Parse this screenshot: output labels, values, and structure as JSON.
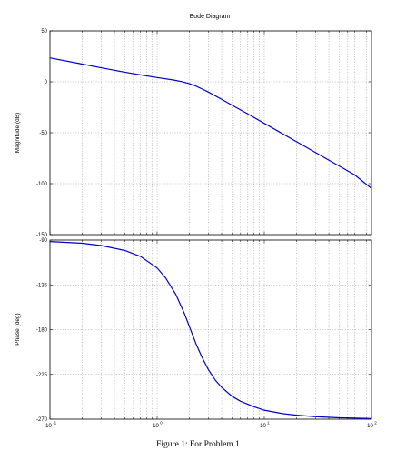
{
  "figure": {
    "title": "Bode Diagram",
    "caption": "Figure 1: For Problem 1"
  },
  "colors": {
    "curve": "#0000cc",
    "grid": "#8a8a8a",
    "axis": "#000000"
  },
  "chart_data": [
    {
      "type": "line",
      "title": "Bode Diagram",
      "xlabel": "",
      "ylabel": "Magnitude (dB)",
      "xscale": "log",
      "xlim": [
        0.1,
        100
      ],
      "ylim": [
        -150,
        50
      ],
      "yticks": [
        50,
        0,
        -50,
        -100,
        -150
      ],
      "grid": true,
      "series": [
        {
          "x": [
            0.1,
            0.2,
            0.3,
            0.5,
            0.7,
            1.0,
            1.4,
            1.7,
            2.0,
            2.3,
            2.6,
            3.0,
            4.0,
            5.0,
            7.0,
            10.0,
            20.0,
            30.0,
            50.0,
            70.0,
            100.0
          ],
          "y": [
            23.5,
            17.4,
            13.8,
            9.4,
            6.8,
            4.2,
            1.9,
            0.2,
            -1.8,
            -4.2,
            -6.8,
            -10.0,
            -17.2,
            -23.0,
            -31.5,
            -40.8,
            -58.8,
            -69.4,
            -82.7,
            -91.5,
            -104.7
          ]
        }
      ]
    },
    {
      "type": "line",
      "xlabel": "",
      "ylabel": "Phase (deg)",
      "xscale": "log",
      "xlim": [
        0.1,
        100
      ],
      "ylim": [
        -270,
        -90
      ],
      "yticks": [
        -90,
        -135,
        -180,
        -225,
        -270
      ],
      "grid": true,
      "series": [
        {
          "x": [
            0.1,
            0.2,
            0.3,
            0.5,
            0.7,
            1.0,
            1.2,
            1.5,
            1.8,
            2.0,
            2.3,
            2.6,
            3.0,
            3.5,
            4.0,
            5.0,
            6.0,
            8.0,
            10.0,
            15.0,
            20.0,
            30.0,
            50.0,
            70.0,
            100.0
          ],
          "y": [
            -91.5,
            -93.2,
            -95.5,
            -100.5,
            -106.5,
            -118,
            -128,
            -145,
            -164,
            -177,
            -194,
            -207,
            -220,
            -231,
            -238,
            -247,
            -252,
            -257.5,
            -261,
            -264.5,
            -266,
            -267.5,
            -268.6,
            -269,
            -269.4
          ]
        }
      ]
    }
  ],
  "x_axis": {
    "ticks": [
      {
        "value": 0.1,
        "base": "10",
        "exp": "-1"
      },
      {
        "value": 1,
        "base": "10",
        "exp": "0"
      },
      {
        "value": 10,
        "base": "10",
        "exp": "1"
      },
      {
        "value": 100,
        "base": "10",
        "exp": "2"
      }
    ]
  }
}
